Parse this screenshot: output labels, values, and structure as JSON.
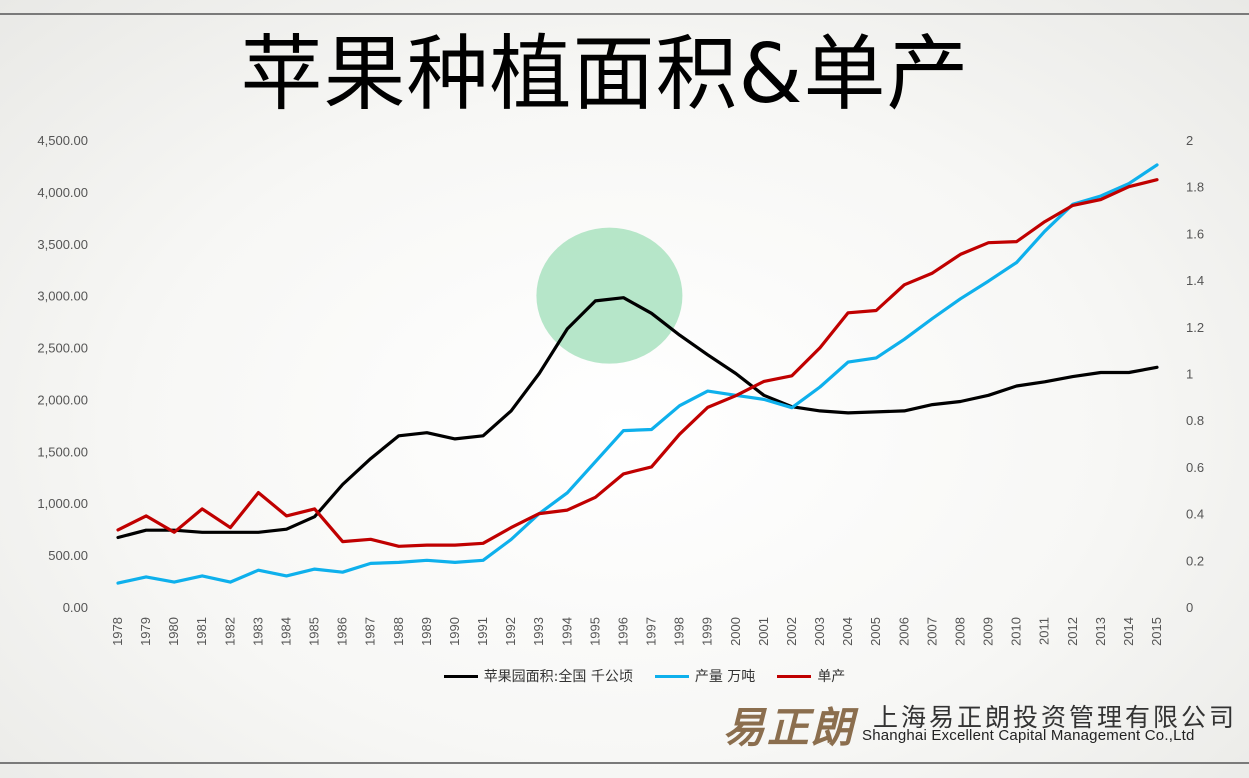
{
  "title": "苹果种植面积&单产",
  "chart_data": {
    "type": "line",
    "categories": [
      "1978",
      "1979",
      "1980",
      "1981",
      "1982",
      "1983",
      "1984",
      "1985",
      "1986",
      "1987",
      "1988",
      "1989",
      "1990",
      "1991",
      "1992",
      "1993",
      "1994",
      "1995",
      "1996",
      "1997",
      "1998",
      "1999",
      "2000",
      "2001",
      "2002",
      "2003",
      "2004",
      "2005",
      "2006",
      "2007",
      "2008",
      "2009",
      "2010",
      "2011",
      "2012",
      "2013",
      "2014",
      "2015"
    ],
    "y_left": {
      "ylim": [
        0,
        4500
      ],
      "ticks": [
        "0.00",
        "500.00",
        "1,000.00",
        "1,500.00",
        "2,000.00",
        "2,500.00",
        "3,000.00",
        "3,500.00",
        "4,000.00",
        "4,500.00"
      ]
    },
    "y_right": {
      "ylim": [
        0,
        2
      ],
      "ticks": [
        "0",
        "0.2",
        "0.4",
        "0.6",
        "0.8",
        "1",
        "1.2",
        "1.4",
        "1.6",
        "1.8",
        "2"
      ]
    },
    "series": [
      {
        "name": "苹果园面积:全国 千公顷",
        "color": "#000000",
        "axis": "left",
        "values": [
          670,
          740,
          740,
          720,
          720,
          720,
          750,
          870,
          1180,
          1430,
          1650,
          1680,
          1620,
          1650,
          1890,
          2250,
          2680,
          2950,
          2980,
          2830,
          2620,
          2430,
          2250,
          2040,
          1930,
          1890,
          1870,
          1880,
          1890,
          1950,
          1980,
          2040,
          2130,
          2170,
          2220,
          2260,
          2260,
          2310
        ]
      },
      {
        "name": "产量 万吨",
        "color": "#0eb0ec",
        "axis": "left",
        "values": [
          230,
          290,
          240,
          300,
          240,
          355,
          300,
          365,
          335,
          420,
          430,
          450,
          430,
          450,
          650,
          900,
          1100,
          1400,
          1700,
          1710,
          1940,
          2080,
          2040,
          2000,
          1920,
          2120,
          2360,
          2400,
          2580,
          2780,
          2970,
          3140,
          3320,
          3620,
          3880,
          3960,
          4080,
          4260
        ]
      },
      {
        "name": "单产",
        "color": "#c00000",
        "axis": "right",
        "values": [
          0.33,
          0.39,
          0.32,
          0.42,
          0.34,
          0.49,
          0.39,
          0.42,
          0.28,
          0.29,
          0.26,
          0.265,
          0.265,
          0.273,
          0.34,
          0.4,
          0.415,
          0.47,
          0.57,
          0.6,
          0.74,
          0.855,
          0.905,
          0.966,
          0.99,
          1.11,
          1.26,
          1.27,
          1.38,
          1.43,
          1.51,
          1.56,
          1.565,
          1.65,
          1.72,
          1.745,
          1.8,
          1.83
        ]
      }
    ],
    "highlight": {
      "category": "1995.5",
      "y": 3000,
      "color": "#a9e2c0"
    },
    "grid": false,
    "legend_position": "bottom"
  },
  "logo": {
    "mark": "易正朗",
    "company_cn": "上海易正朗投资管理有限公司",
    "company_en": "Shanghai Excellent Capital Management Co.,Ltd"
  }
}
